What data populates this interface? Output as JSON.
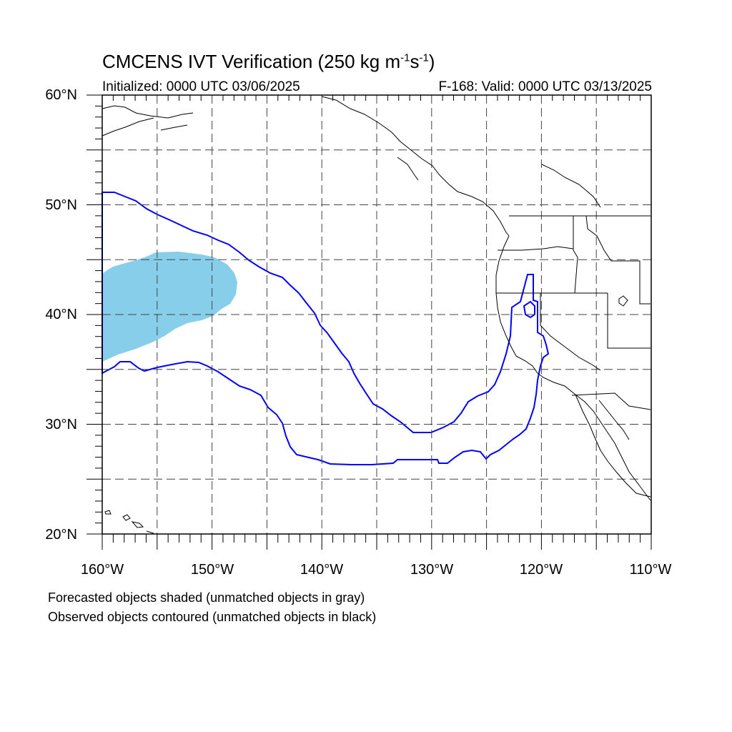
{
  "title": {
    "prefix": "CMCENS IVT Verification (250 kg m",
    "exp1": "-1",
    "mid": "s",
    "exp2": "-1",
    "suffix": ")"
  },
  "subtitle_left": "Initialized: 0000 UTC 03/06/2025",
  "subtitle_right": "F-168: Valid: 0000 UTC 03/13/2025",
  "lat_labels": [
    "60°N",
    "50°N",
    "40°N",
    "30°N",
    "20°N"
  ],
  "lon_labels": [
    "160°W",
    "150°W",
    "140°W",
    "130°W",
    "120°W",
    "110°W"
  ],
  "captions": [
    "Forecasted objects shaded (unmatched objects in gray)",
    "Observed objects contoured (unmatched objects in black)"
  ],
  "map": {
    "lon_range": [
      -160,
      -110
    ],
    "lat_range": [
      20,
      60
    ],
    "grid_lon_step": 5,
    "grid_lat_step": 5,
    "forecast_color": "#87ceeb",
    "observed_color": "#0000ff",
    "grid_style": "dashed"
  }
}
